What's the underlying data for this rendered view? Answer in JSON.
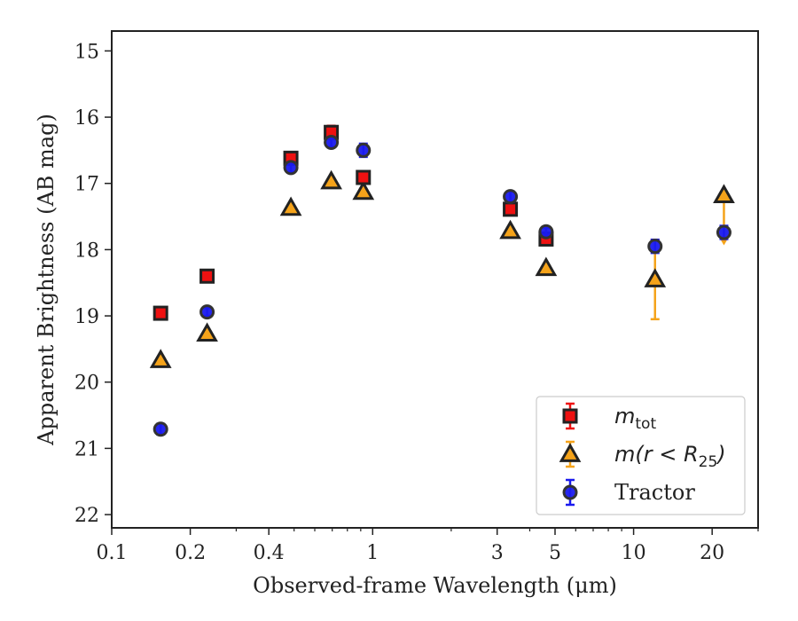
{
  "chart_data": {
    "type": "scatter",
    "xlabel": "Observed-frame Wavelength (μm)",
    "ylabel": "Apparent Brightness (AB mag)",
    "xscale": "log",
    "xlim": [
      0.1,
      30
    ],
    "ylim": [
      22.2,
      14.7
    ],
    "y_inverted": true,
    "grid": false,
    "legend_position": "lower-right",
    "x_ticks": [
      {
        "value": 0.1,
        "label": "0.1"
      },
      {
        "value": 0.2,
        "label": "0.2"
      },
      {
        "value": 0.4,
        "label": "0.4"
      },
      {
        "value": 1,
        "label": "1"
      },
      {
        "value": 3,
        "label": "3"
      },
      {
        "value": 5,
        "label": "5"
      },
      {
        "value": 10,
        "label": "10"
      },
      {
        "value": 20,
        "label": "20"
      }
    ],
    "y_ticks": [
      {
        "value": 15,
        "label": "15"
      },
      {
        "value": 16,
        "label": "16"
      },
      {
        "value": 17,
        "label": "17"
      },
      {
        "value": 18,
        "label": "18"
      },
      {
        "value": 19,
        "label": "19"
      },
      {
        "value": 20,
        "label": "20"
      },
      {
        "value": 21,
        "label": "21"
      },
      {
        "value": 22,
        "label": "22"
      }
    ],
    "series": [
      {
        "name": "m_tot",
        "legend_main": "m",
        "legend_sub": "tot",
        "marker": "square",
        "color": "#ee1111",
        "edge_color": "#222222",
        "error_color": "#ee1111",
        "points": [
          {
            "x": 0.154,
            "y": 18.96,
            "err": 0.04
          },
          {
            "x": 0.232,
            "y": 18.4,
            "err": 0.04
          },
          {
            "x": 0.486,
            "y": 16.62,
            "err": 0.05
          },
          {
            "x": 0.694,
            "y": 16.23,
            "err": 0.1
          },
          {
            "x": 0.921,
            "y": 16.91,
            "err": 0.06
          },
          {
            "x": 3.37,
            "y": 17.39,
            "err": 0.05
          },
          {
            "x": 4.62,
            "y": 17.84,
            "err": 0.08
          }
        ]
      },
      {
        "name": "m(r < R_25)",
        "legend_main": "m(r < R",
        "legend_sub": "25",
        "legend_close": ")",
        "marker": "triangle",
        "color": "#f5a31a",
        "edge_color": "#222222",
        "error_color": "#f5a31a",
        "points": [
          {
            "x": 0.154,
            "y": 19.67,
            "err": 0.04
          },
          {
            "x": 0.232,
            "y": 19.27,
            "err": 0.04
          },
          {
            "x": 0.486,
            "y": 17.37,
            "err": 0.03
          },
          {
            "x": 0.694,
            "y": 16.97,
            "err": 0.03
          },
          {
            "x": 0.921,
            "y": 17.13,
            "err": 0.03
          },
          {
            "x": 3.37,
            "y": 17.72,
            "err": 0.03
          },
          {
            "x": 4.62,
            "y": 18.28,
            "err": 0.03
          },
          {
            "x": 12.08,
            "y": 18.45,
            "err": 0.6
          },
          {
            "x": 22.19,
            "y": 17.18,
            "err": 0.7,
            "upper_limit": true
          }
        ]
      },
      {
        "name": "Tractor",
        "legend_main": "Tractor",
        "marker": "circle",
        "color": "#1a1aee",
        "edge_color": "#333333",
        "error_color": "#1a1aee",
        "points": [
          {
            "x": 0.154,
            "y": 20.71,
            "err": 0.08
          },
          {
            "x": 0.232,
            "y": 18.94,
            "err": 0.06
          },
          {
            "x": 0.486,
            "y": 16.76,
            "err": 0.07
          },
          {
            "x": 0.694,
            "y": 16.38,
            "err": 0.07
          },
          {
            "x": 0.921,
            "y": 16.5,
            "err": 0.1
          },
          {
            "x": 3.37,
            "y": 17.2,
            "err": 0.08
          },
          {
            "x": 4.62,
            "y": 17.73,
            "err": 0.06
          },
          {
            "x": 12.08,
            "y": 17.95,
            "err": 0.1
          },
          {
            "x": 22.19,
            "y": 17.74,
            "err": 0.1
          }
        ]
      }
    ]
  }
}
